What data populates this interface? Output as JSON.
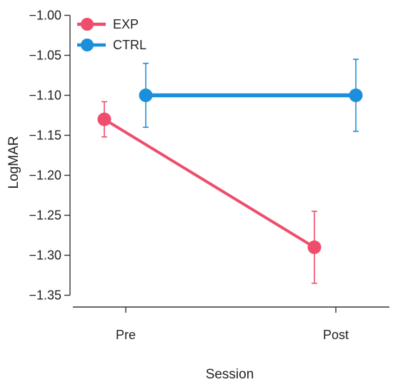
{
  "chart_data": {
    "type": "line",
    "title": "",
    "xlabel": "Session",
    "ylabel": "LogMAR",
    "categories": [
      "Pre",
      "Post"
    ],
    "ylim": [
      -1.37,
      -0.98
    ],
    "yticks": [
      -1.0,
      -1.05,
      -1.1,
      -1.15,
      -1.2,
      -1.25,
      -1.3,
      -1.35
    ],
    "ytick_labels": [
      "−1.00",
      "−1.05",
      "−1.10",
      "−1.15",
      "−1.20",
      "−1.25",
      "−1.30",
      "−1.35"
    ],
    "grid": false,
    "legend_position": "top-left",
    "series": [
      {
        "name": "EXP",
        "color": "#ee4d6b",
        "values": [
          -1.13,
          -1.29
        ],
        "err_low": [
          -1.152,
          -1.335
        ],
        "err_high": [
          -1.108,
          -1.245
        ]
      },
      {
        "name": "CTRL",
        "color": "#1b8fdc",
        "values": [
          -1.1,
          -1.1
        ],
        "err_low": [
          -1.14,
          -1.145
        ],
        "err_high": [
          -1.06,
          -1.055
        ]
      }
    ]
  }
}
